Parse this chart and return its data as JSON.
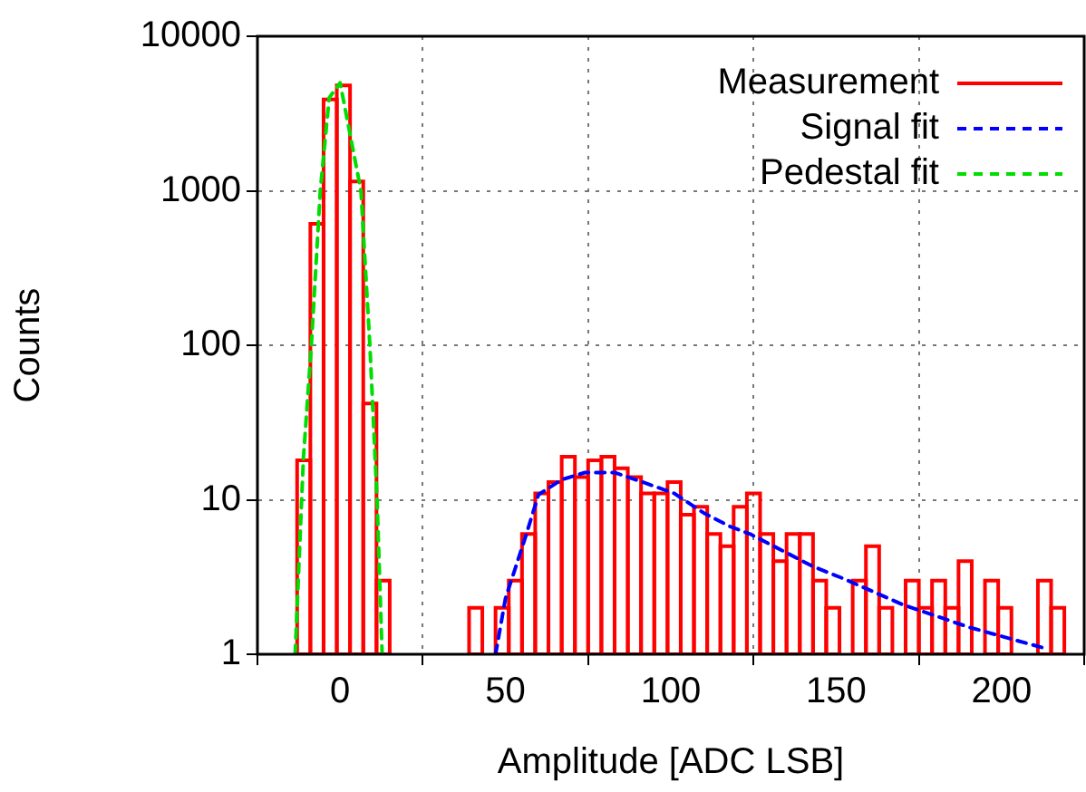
{
  "chart_data": {
    "type": "histogram",
    "xlabel": "Amplitude [ADC LSB]",
    "ylabel": "Counts",
    "log": "y",
    "grid": true,
    "legend": "top right",
    "xlim": [
      -25,
      225
    ],
    "xticks": [
      0,
      50,
      100,
      150,
      200
    ],
    "ylim": [
      1,
      10000
    ],
    "yticks": [
      1,
      10,
      100,
      1000,
      10000
    ],
    "bins": [
      -13,
      -9,
      -5,
      -1,
      3,
      7,
      11,
      15,
      19,
      23,
      27,
      31,
      35,
      39,
      43,
      47,
      51,
      55,
      59,
      63,
      67,
      71,
      75,
      79,
      83,
      87,
      91,
      95,
      99,
      103,
      107,
      111,
      115,
      119,
      123,
      127,
      131,
      135,
      139,
      143,
      147,
      151,
      155,
      159,
      163,
      167,
      171,
      175,
      179,
      183,
      187,
      191,
      195,
      199,
      203,
      207,
      211,
      215,
      219,
      223
    ],
    "series": [
      {
        "name": "Measurement",
        "color": "#ff0000",
        "values": [
          18,
          610,
          3900,
          4800,
          1150,
          42,
          3,
          null,
          null,
          null,
          null,
          null,
          null,
          2,
          null,
          2,
          3,
          6,
          11,
          13,
          19,
          14,
          18,
          19,
          16,
          14,
          11,
          11,
          13,
          8,
          9,
          6,
          5,
          9,
          11,
          6,
          4,
          6,
          6,
          3,
          2,
          null,
          3,
          5,
          2,
          null,
          3,
          2,
          3,
          2,
          4,
          null,
          3,
          2,
          null,
          null,
          3,
          2,
          null
        ]
      },
      {
        "name": "Signal fit",
        "type": "line",
        "color": "#0000ff",
        "line_style": "dashed",
        "x": [
          47,
          50,
          56,
          60,
          67,
          74,
          83,
          92,
          101,
          110,
          118,
          124,
          143,
          152,
          170,
          190,
          214
        ],
        "values": [
          1,
          2.3,
          5.7,
          10.8,
          13.5,
          15,
          15,
          12.9,
          11,
          8.2,
          6.7,
          6,
          3.7,
          3.1,
          2.1,
          1.5,
          1.08
        ]
      },
      {
        "name": "Pedestal fit",
        "type": "line",
        "color": "#00dd00",
        "line_style": "dashed",
        "x": [
          -13.6,
          -11.1,
          -8.7,
          -6,
          -3.3,
          0,
          6.3,
          9,
          11.2,
          12.7
        ],
        "values": [
          1,
          18.6,
          100,
          1000,
          4000,
          5000,
          1000,
          100,
          9.7,
          1
        ]
      }
    ]
  }
}
